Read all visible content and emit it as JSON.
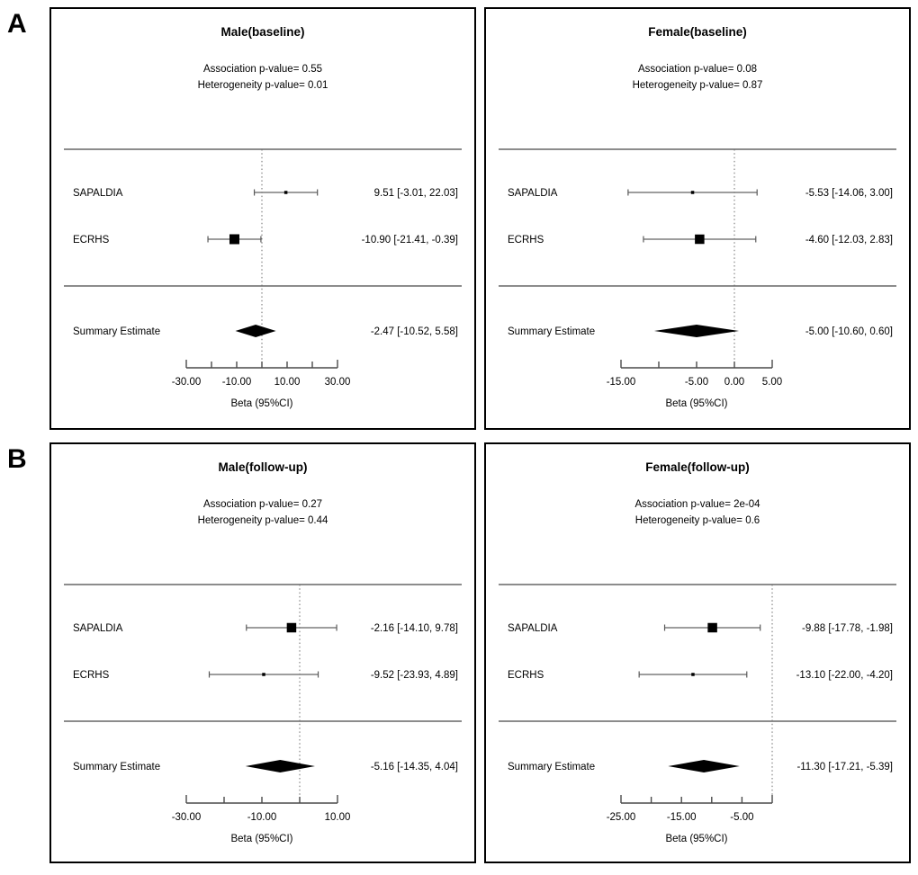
{
  "figure": {
    "section_labels": [
      "A",
      "B"
    ],
    "axis_title": "Beta (95%CI)",
    "colors": {
      "border": "#000000",
      "separator": "#8c8c8c",
      "whisker": "#7d7d7d",
      "cap": "#5a5a5a",
      "marker": "#000000",
      "reference_line": "#6e6e6e",
      "axis_line": "#4a4a4a",
      "text": "#000000"
    }
  },
  "chart_data": [
    {
      "type": "forest",
      "section": "A",
      "panel_id": "male-baseline",
      "title": "Male(baseline)",
      "association_p_label": "Association p-value= 0.55",
      "heterogeneity_p_label": "Heterogeneity p-value= 0.01",
      "association_p": 0.55,
      "heterogeneity_p": 0.01,
      "reference_value": 0,
      "studies": [
        {
          "label": "SAPALDIA",
          "estimate": 9.51,
          "ci_lower": -3.01,
          "ci_upper": 22.03,
          "display": "9.51 [-3.01, 22.03]",
          "marker_px": 3.5
        },
        {
          "label": "ECRHS",
          "estimate": -10.9,
          "ci_lower": -21.41,
          "ci_upper": -0.39,
          "display": "-10.90 [-21.41, -0.39]",
          "marker_px": 11
        }
      ],
      "summary": {
        "label": "Summary Estimate",
        "estimate": -2.47,
        "ci_lower": -10.52,
        "ci_upper": 5.58,
        "display": "-2.47 [-10.52, 5.58]"
      },
      "xaxis": {
        "title": "Beta (95%CI)",
        "range": [
          -30,
          30
        ],
        "tick_values": [
          -30,
          -20,
          -10,
          0,
          10,
          20,
          30
        ],
        "tick_labels": [
          "-30.00",
          "",
          "-10.00",
          "",
          "10.00",
          "",
          "30.00"
        ]
      }
    },
    {
      "type": "forest",
      "section": "A",
      "panel_id": "female-baseline",
      "title": "Female(baseline)",
      "association_p_label": "Association p-value= 0.08",
      "heterogeneity_p_label": "Heterogeneity p-value= 0.87",
      "association_p": 0.08,
      "heterogeneity_p": 0.87,
      "reference_value": 0,
      "studies": [
        {
          "label": "SAPALDIA",
          "estimate": -5.53,
          "ci_lower": -14.06,
          "ci_upper": 3.0,
          "display": "-5.53 [-14.06, 3.00]",
          "marker_px": 3.5
        },
        {
          "label": "ECRHS",
          "estimate": -4.6,
          "ci_lower": -12.03,
          "ci_upper": 2.83,
          "display": "-4.60 [-12.03, 2.83]",
          "marker_px": 10.5
        }
      ],
      "summary": {
        "label": "Summary Estimate",
        "estimate": -5.0,
        "ci_lower": -10.6,
        "ci_upper": 0.6,
        "display": "-5.00 [-10.60, 0.60]"
      },
      "xaxis": {
        "title": "Beta (95%CI)",
        "range": [
          -15,
          5
        ],
        "tick_values": [
          -15,
          -10,
          -5,
          0,
          5
        ],
        "tick_labels": [
          "-15.00",
          "",
          "-5.00",
          "0.00",
          "5.00"
        ]
      }
    },
    {
      "type": "forest",
      "section": "B",
      "panel_id": "male-followup",
      "title": "Male(follow-up)",
      "association_p_label": "Association p-value= 0.27",
      "heterogeneity_p_label": "Heterogeneity p-value= 0.44",
      "association_p": 0.27,
      "heterogeneity_p": 0.44,
      "reference_value": 0,
      "studies": [
        {
          "label": "SAPALDIA",
          "estimate": -2.16,
          "ci_lower": -14.1,
          "ci_upper": 9.78,
          "display": "-2.16 [-14.10, 9.78]",
          "marker_px": 10.5
        },
        {
          "label": "ECRHS",
          "estimate": -9.52,
          "ci_lower": -23.93,
          "ci_upper": 4.89,
          "display": "-9.52 [-23.93, 4.89]",
          "marker_px": 3.5
        }
      ],
      "summary": {
        "label": "Summary Estimate",
        "estimate": -5.16,
        "ci_lower": -14.35,
        "ci_upper": 4.04,
        "display": "-5.16 [-14.35, 4.04]"
      },
      "xaxis": {
        "title": "Beta (95%CI)",
        "range": [
          -30,
          10
        ],
        "tick_values": [
          -30,
          -20,
          -10,
          0,
          10
        ],
        "tick_labels": [
          "-30.00",
          "",
          "-10.00",
          "",
          "10.00"
        ]
      }
    },
    {
      "type": "forest",
      "section": "B",
      "panel_id": "female-followup",
      "title": "Female(follow-up)",
      "association_p_label": "Association p-value= 2e-04",
      "heterogeneity_p_label": "Heterogeneity p-value= 0.6",
      "association_p": 0.0002,
      "heterogeneity_p": 0.6,
      "reference_value": 0,
      "studies": [
        {
          "label": "SAPALDIA",
          "estimate": -9.88,
          "ci_lower": -17.78,
          "ci_upper": -1.98,
          "display": "-9.88 [-17.78, -1.98]",
          "marker_px": 10.5
        },
        {
          "label": "ECRHS",
          "estimate": -13.1,
          "ci_lower": -22.0,
          "ci_upper": -4.2,
          "display": "-13.10 [-22.00, -4.20]",
          "marker_px": 3.5
        }
      ],
      "summary": {
        "label": "Summary Estimate",
        "estimate": -11.3,
        "ci_lower": -17.21,
        "ci_upper": -5.39,
        "display": "-11.30 [-17.21, -5.39]"
      },
      "xaxis": {
        "title": "Beta (95%CI)",
        "range": [
          -25,
          0
        ],
        "tick_values": [
          -25,
          -20,
          -15,
          -10,
          -5,
          0
        ],
        "tick_labels": [
          "-25.00",
          "",
          "-15.00",
          "",
          "-5.00",
          ""
        ]
      }
    }
  ]
}
